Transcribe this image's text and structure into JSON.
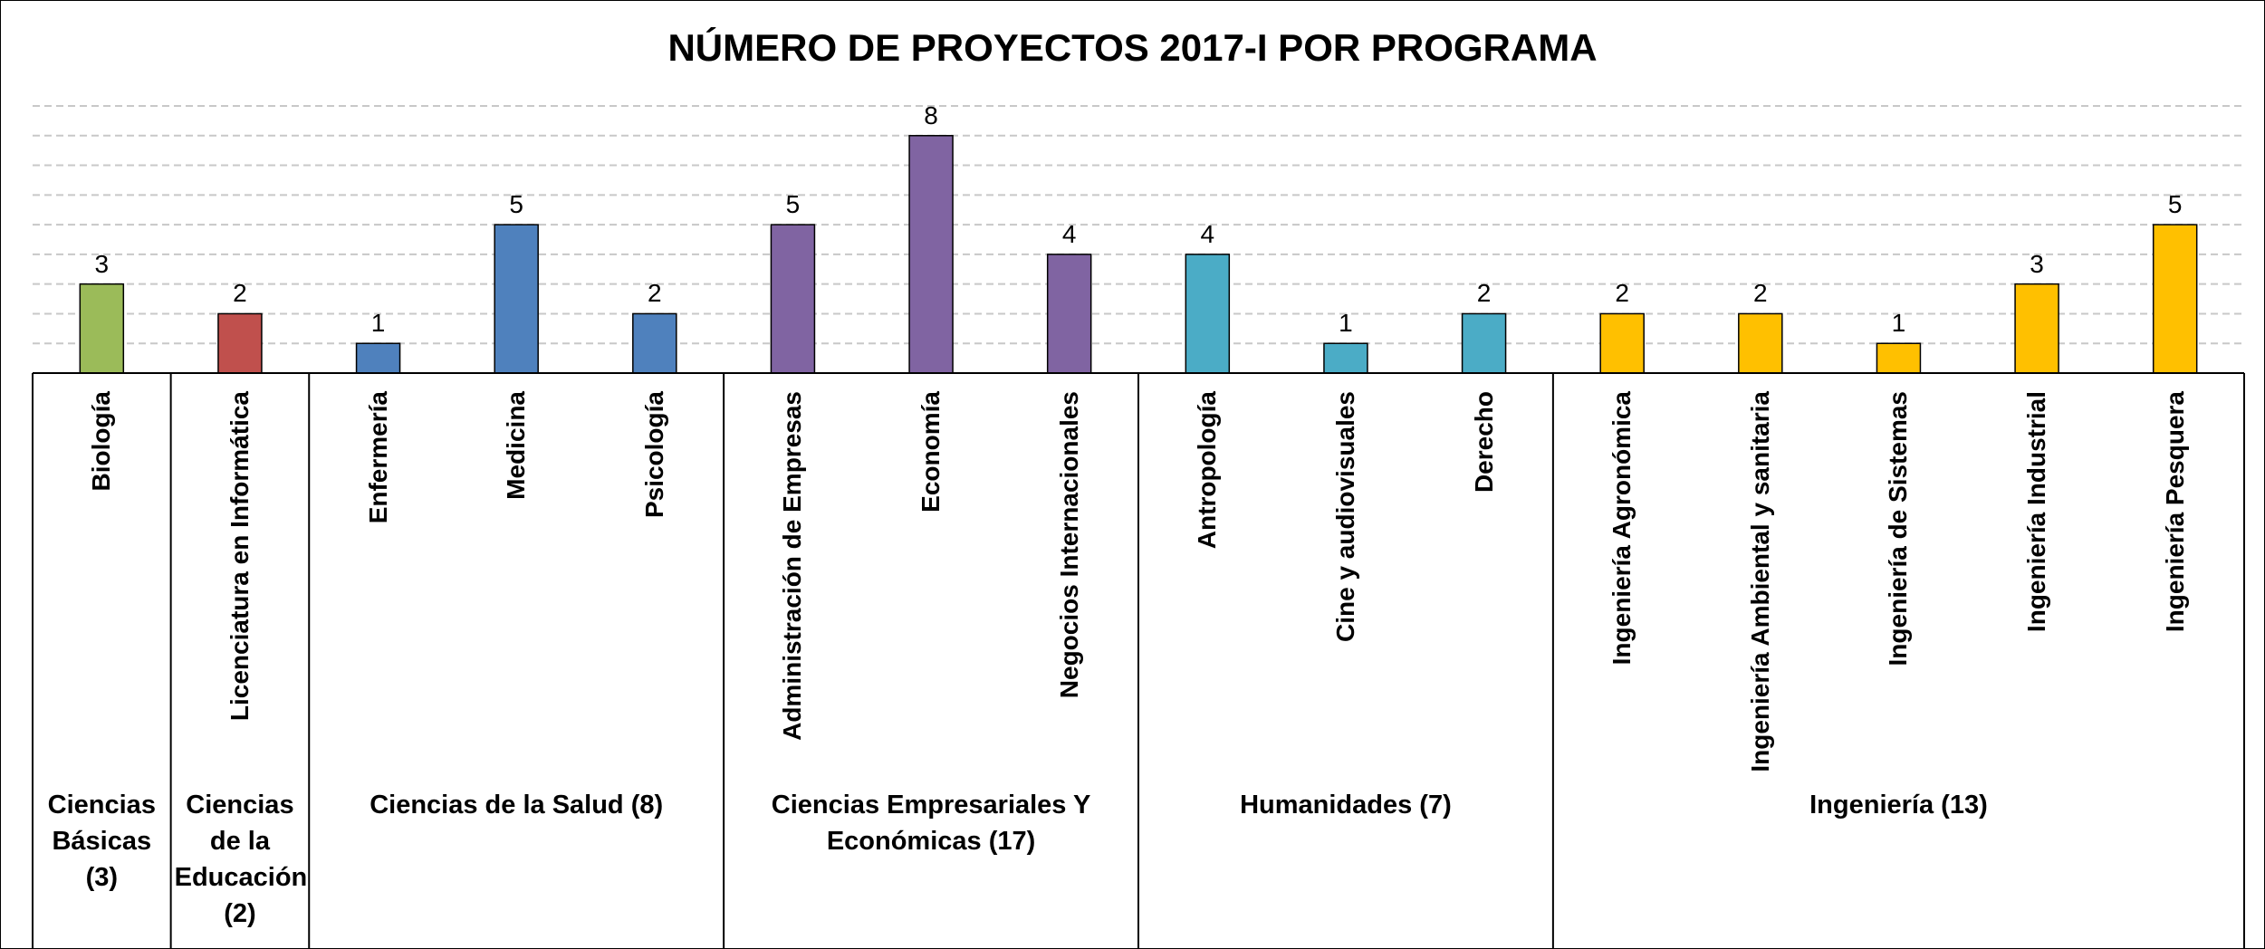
{
  "chart_data": {
    "type": "bar",
    "title": "NÚMERO DE PROYECTOS 2017-I POR PROGRAMA",
    "categories": [
      "Biología",
      "Licenciatura en Informática",
      "Enfermería",
      "Medicina",
      "Psicología",
      "Administración de Empresas",
      "Economía",
      "Negocios Internacionales",
      "Antropología",
      "Cine y audiovisuales",
      "Derecho",
      "Ingeniería Agronómica",
      "Ingeniería Ambiental y sanitaria",
      "Ingeniería de Sistemas",
      "Ingeniería Industrial",
      "Ingeniería Pesquera"
    ],
    "values": [
      3,
      2,
      1,
      5,
      2,
      5,
      8,
      4,
      4,
      1,
      2,
      2,
      2,
      1,
      3,
      5
    ],
    "groups": [
      {
        "name": "Ciencias Básicas (3)",
        "count": 1,
        "color": "#9bbb59"
      },
      {
        "name": "Ciencias de la Educación (2)",
        "count": 1,
        "color": "#c0504d"
      },
      {
        "name": "Ciencias de la Salud (8)",
        "count": 3,
        "color": "#4f81bd"
      },
      {
        "name": "Ciencias Empresariales Y Económicas (17)",
        "count": 3,
        "color": "#8064a2"
      },
      {
        "name": "Humanidades (7)",
        "count": 3,
        "color": "#4bacc6"
      },
      {
        "name": "Ingeniería (13)",
        "count": 5,
        "color": "#ffc000"
      }
    ],
    "ylim": [
      0,
      9
    ],
    "yticks": [
      1,
      2,
      3,
      4,
      5,
      6,
      7,
      8,
      9
    ],
    "show_ytick_labels": false,
    "grid": true
  }
}
